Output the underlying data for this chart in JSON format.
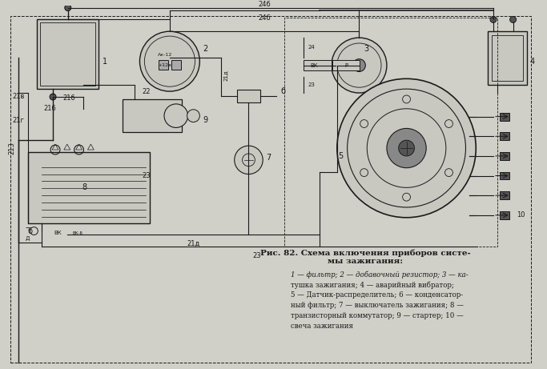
{
  "title": "Рис. 82. Схема включения приборов систе-\nмы зажигания:",
  "caption_lines": [
    "1 — фильтр; 2 — добавочный резистор; 3 — ка-",
    "тушка зажигания; 4 — аварийный вибратор;",
    "5 — Датчик-распределитель; 6 — конденсатор-",
    "ный фильтр; 7 — выключатель зажигания; 8 —",
    "транзисторный коммутатор; 9 — стартер; 10 —",
    "свеча зажигания"
  ],
  "bg_color": "#d0cfc8",
  "line_color": "#1a1a1a",
  "wire_color": "#2a2a2a"
}
